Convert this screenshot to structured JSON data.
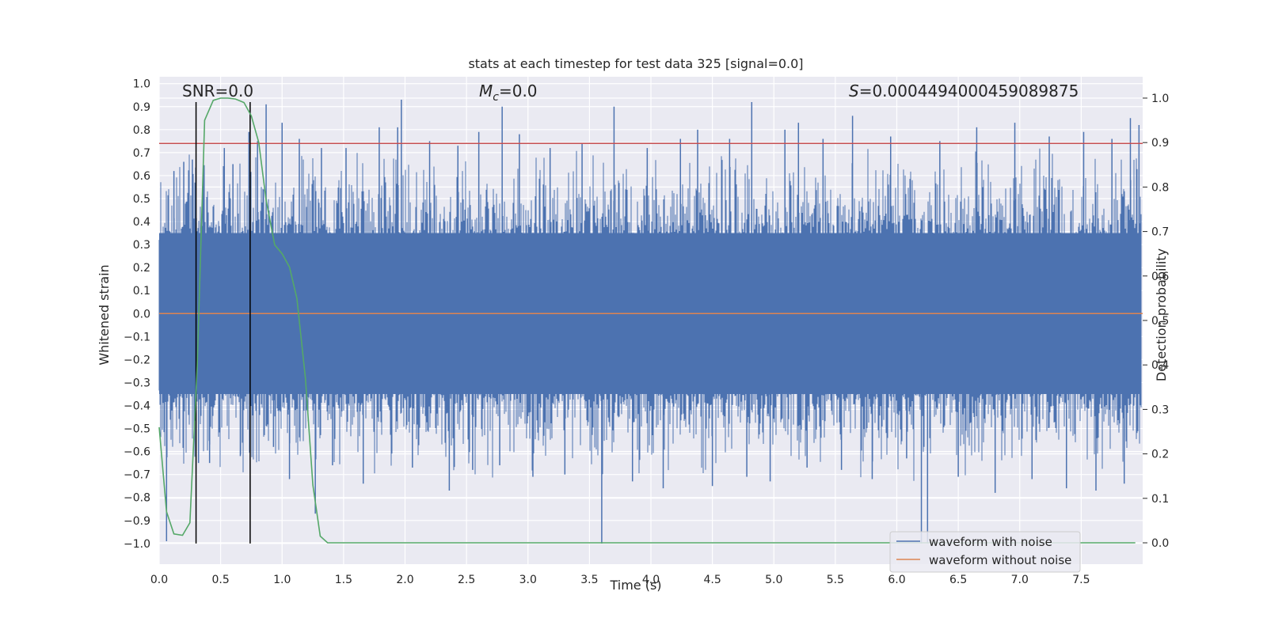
{
  "chart_data": {
    "type": "line",
    "title": "stats at each timestep for test data 325 [signal=0.0]",
    "xlabel": "Time (s)",
    "ylabel": "Whitened strain",
    "y2label": "Detection probability",
    "xlim": [
      0.0,
      8.0
    ],
    "ylim": [
      -1.09,
      1.03
    ],
    "y2lim": [
      -0.048,
      1.048
    ],
    "xticks": [
      0.0,
      0.5,
      1.0,
      1.5,
      2.0,
      2.5,
      3.0,
      3.5,
      4.0,
      4.5,
      5.0,
      5.5,
      6.0,
      6.5,
      7.0,
      7.5
    ],
    "xtick_labels": [
      "0.0",
      "0.5",
      "1.0",
      "1.5",
      "2.0",
      "2.5",
      "3.0",
      "3.5",
      "4.0",
      "4.5",
      "5.0",
      "5.5",
      "6.0",
      "6.5",
      "7.0",
      "7.5"
    ],
    "yticks": [
      1.0,
      0.9,
      0.8,
      0.7,
      0.6,
      0.5,
      0.4,
      0.3,
      0.2,
      0.1,
      0.0,
      -0.1,
      -0.2,
      -0.3,
      -0.4,
      -0.5,
      -0.6,
      -0.7,
      -0.8,
      -0.9,
      -1.0
    ],
    "ytick_labels": [
      "1.0",
      "0.9",
      "0.8",
      "0.7",
      "0.6",
      "0.5",
      "0.4",
      "0.3",
      "0.2",
      "0.1",
      "0.0",
      "−0.1",
      "−0.2",
      "−0.3",
      "−0.4",
      "−0.5",
      "−0.6",
      "−0.7",
      "−0.8",
      "−0.9",
      "−1.0"
    ],
    "y2ticks": [
      0.0,
      0.1,
      0.2,
      0.3,
      0.4,
      0.5,
      0.6,
      0.7,
      0.8,
      0.9,
      1.0
    ],
    "y2tick_labels": [
      "0.0",
      "0.1",
      "0.2",
      "0.3",
      "0.4",
      "0.5",
      "0.6",
      "0.7",
      "0.8",
      "0.9",
      "1.0"
    ],
    "annotations": {
      "snr": "SNR=0.0",
      "mc_symbol": "M",
      "mc_subscript": "c",
      "mc_value": "=0.0",
      "s_symbol": "S",
      "s_value": "=0.0004494000459089875"
    },
    "vertical_lines_x": [
      0.3,
      0.74
    ],
    "threshold_strain": 0.74,
    "series": [
      {
        "name": "waveform with noise",
        "color": "#4c72b0",
        "description_values": "whitened noise, dense band approx -0.35..0.35 with spikes to about +/-0.9",
        "spikes": [
          [
            0.06,
            -0.99
          ],
          [
            0.12,
            0.62
          ],
          [
            0.2,
            0.66
          ],
          [
            0.27,
            0.67
          ],
          [
            0.32,
            -0.65
          ],
          [
            0.41,
            -0.65
          ],
          [
            0.53,
            0.72
          ],
          [
            0.6,
            0.65
          ],
          [
            0.66,
            -0.62
          ],
          [
            0.73,
            0.79
          ],
          [
            0.8,
            0.75
          ],
          [
            0.87,
            0.91
          ],
          [
            0.93,
            -0.58
          ],
          [
            1.0,
            0.83
          ],
          [
            1.06,
            -0.72
          ],
          [
            1.14,
            0.76
          ],
          [
            1.27,
            -0.87
          ],
          [
            1.32,
            0.72
          ],
          [
            1.41,
            -0.66
          ],
          [
            1.52,
            0.72
          ],
          [
            1.66,
            -0.74
          ],
          [
            1.79,
            0.81
          ],
          [
            1.94,
            0.81
          ],
          [
            1.97,
            0.93
          ],
          [
            2.06,
            -0.67
          ],
          [
            2.2,
            0.75
          ],
          [
            2.36,
            -0.77
          ],
          [
            2.43,
            0.73
          ],
          [
            2.55,
            -0.68
          ],
          [
            2.6,
            0.79
          ],
          [
            2.77,
            -0.66
          ],
          [
            2.79,
            0.9
          ],
          [
            2.93,
            0.78
          ],
          [
            3.04,
            -0.71
          ],
          [
            3.18,
            0.72
          ],
          [
            3.3,
            -0.7
          ],
          [
            3.44,
            0.74
          ],
          [
            3.6,
            -1.0
          ],
          [
            3.7,
            0.9
          ],
          [
            3.85,
            -0.73
          ],
          [
            3.97,
            0.72
          ],
          [
            4.1,
            -0.76
          ],
          [
            4.24,
            0.76
          ],
          [
            4.38,
            0.8
          ],
          [
            4.5,
            -0.75
          ],
          [
            4.64,
            0.76
          ],
          [
            4.78,
            -0.71
          ],
          [
            4.82,
            0.92
          ],
          [
            4.97,
            -0.73
          ],
          [
            5.09,
            0.8
          ],
          [
            5.2,
            0.83
          ],
          [
            5.27,
            -0.67
          ],
          [
            5.4,
            0.76
          ],
          [
            5.55,
            -0.68
          ],
          [
            5.64,
            0.86
          ],
          [
            5.8,
            -0.72
          ],
          [
            5.95,
            0.77
          ],
          [
            6.08,
            -0.63
          ],
          [
            6.2,
            -1.0
          ],
          [
            6.25,
            -1.0
          ],
          [
            6.35,
            0.75
          ],
          [
            6.5,
            -0.71
          ],
          [
            6.65,
            0.81
          ],
          [
            6.8,
            -0.78
          ],
          [
            6.96,
            0.83
          ],
          [
            7.1,
            -0.72
          ],
          [
            7.24,
            0.77
          ],
          [
            7.38,
            -0.76
          ],
          [
            7.52,
            0.79
          ],
          [
            7.62,
            -0.77
          ],
          [
            7.75,
            0.76
          ],
          [
            7.85,
            -0.74
          ],
          [
            7.9,
            0.85
          ],
          [
            7.97,
            0.82
          ]
        ]
      },
      {
        "name": "waveform without noise",
        "color": "#dd8452",
        "x": [
          0.0,
          8.0
        ],
        "y": [
          0.0,
          0.0
        ]
      },
      {
        "name": "detection probability",
        "color": "#55a868",
        "axis": "right",
        "x": [
          0.0,
          0.06,
          0.12,
          0.19,
          0.25,
          0.31,
          0.37,
          0.44,
          0.5,
          0.56,
          0.62,
          0.69,
          0.75,
          0.81,
          0.87,
          0.94,
          1.0,
          1.06,
          1.12,
          1.19,
          1.25,
          1.31,
          1.37,
          1.44,
          1.5,
          2.0,
          3.0,
          4.0,
          5.0,
          6.0,
          7.0,
          7.94
        ],
        "y": [
          0.26,
          0.07,
          0.02,
          0.017,
          0.045,
          0.4,
          0.95,
          0.995,
          1.0,
          1.0,
          0.998,
          0.99,
          0.96,
          0.9,
          0.77,
          0.67,
          0.65,
          0.62,
          0.55,
          0.37,
          0.13,
          0.015,
          0.0,
          0.0,
          0.0,
          0.0,
          0.0,
          0.0,
          0.0,
          0.0,
          0.0,
          0.0
        ]
      },
      {
        "name": "threshold",
        "color": "#c44e52",
        "x": [
          0.0,
          8.0
        ],
        "y": [
          0.74,
          0.74
        ]
      }
    ],
    "legend": {
      "location": "lower-right",
      "entries": [
        {
          "label": "waveform with noise",
          "color": "#4c72b0"
        },
        {
          "label": "waveform without noise",
          "color": "#dd8452"
        }
      ]
    },
    "colors": {
      "plot_background": "#eaeaf2",
      "grid": "#ffffff",
      "vertical_line": "#000000"
    }
  }
}
